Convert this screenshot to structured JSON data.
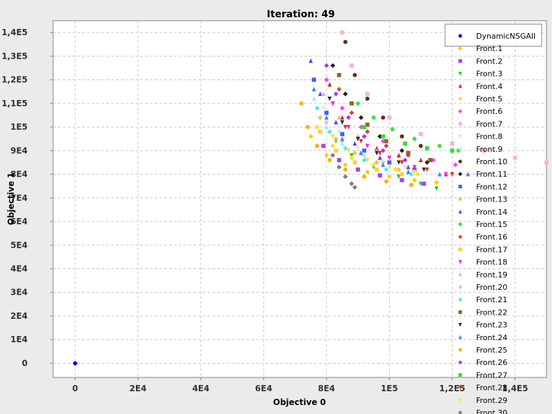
{
  "chart_data": {
    "type": "scatter",
    "title": "Iteration: 49",
    "xlabel": "Objective 0",
    "ylabel": "Objective 1",
    "xlim": [
      -7000,
      150000
    ],
    "ylim": [
      -6000,
      145000
    ],
    "x_ticks": [
      {
        "value": 0,
        "label": "0"
      },
      {
        "value": 20000,
        "label": "2E4"
      },
      {
        "value": 40000,
        "label": "4E4"
      },
      {
        "value": 60000,
        "label": "6E4"
      },
      {
        "value": 80000,
        "label": "8E4"
      },
      {
        "value": 100000,
        "label": "1E5"
      },
      {
        "value": 120000,
        "label": "1,2E5"
      },
      {
        "value": 140000,
        "label": "1,4E5"
      }
    ],
    "y_ticks": [
      {
        "value": 0,
        "label": "0"
      },
      {
        "value": 10000,
        "label": "1E4"
      },
      {
        "value": 20000,
        "label": "2E4"
      },
      {
        "value": 30000,
        "label": "3E4"
      },
      {
        "value": 40000,
        "label": "4E4"
      },
      {
        "value": 50000,
        "label": "5E4"
      },
      {
        "value": 60000,
        "label": "6E4"
      },
      {
        "value": 70000,
        "label": "7E4"
      },
      {
        "value": 80000,
        "label": "8E4"
      },
      {
        "value": 90000,
        "label": "9E4"
      },
      {
        "value": 100000,
        "label": "1E5"
      },
      {
        "value": 110000,
        "label": "1,1E5"
      },
      {
        "value": 120000,
        "label": "1,2E5"
      },
      {
        "value": 130000,
        "label": "1,3E5"
      },
      {
        "value": 140000,
        "label": "1,4E5"
      }
    ],
    "grid": true,
    "legend_position": "top-right",
    "series": [
      {
        "name": "DynamicNSGAII",
        "color": "#0000ff",
        "marker": "circle",
        "points": [
          [
            0,
            0
          ]
        ]
      },
      {
        "name": "Front.1",
        "color": "#ffc800",
        "marker": "diamond",
        "points": [
          [
            75000,
            96000
          ],
          [
            80000,
            88000
          ],
          [
            86000,
            84000
          ],
          [
            93000,
            81000
          ],
          [
            100000,
            79000
          ],
          [
            108000,
            77500
          ],
          [
            115000,
            76500
          ]
        ]
      },
      {
        "name": "Front.2",
        "color": "#a040ff",
        "marker": "square",
        "points": [
          [
            79000,
            92000
          ],
          [
            84000,
            86000
          ],
          [
            90000,
            82000
          ],
          [
            97000,
            79500
          ],
          [
            104000,
            77500
          ],
          [
            111000,
            76000
          ]
        ]
      },
      {
        "name": "Front.3",
        "color": "#20d020",
        "marker": "triangle-down",
        "points": [
          [
            83000,
            94000
          ],
          [
            88000,
            88000
          ],
          [
            95000,
            83000
          ],
          [
            103000,
            79000
          ],
          [
            110000,
            76000
          ],
          [
            115000,
            74000
          ]
        ]
      },
      {
        "name": "Front.4",
        "color": "#e02020",
        "marker": "triangle-up",
        "points": [
          [
            81000,
            118000
          ],
          [
            85000,
            104000
          ],
          [
            90000,
            96000
          ],
          [
            96000,
            91000
          ],
          [
            103000,
            88000
          ],
          [
            110000,
            86000
          ]
        ]
      },
      {
        "name": "Front.5",
        "color": "#ffe030",
        "marker": "circle",
        "points": [
          [
            77000,
            100000
          ],
          [
            82000,
            92000
          ],
          [
            88000,
            87000
          ],
          [
            95000,
            84000
          ],
          [
            102000,
            82000
          ],
          [
            109000,
            80000
          ]
        ]
      },
      {
        "name": "Front.6",
        "color": "#ff40ff",
        "marker": "diamond",
        "points": [
          [
            80000,
            120000
          ],
          [
            85000,
            108000
          ],
          [
            91000,
            100000
          ],
          [
            98000,
            94000
          ],
          [
            106000,
            89000
          ],
          [
            114000,
            86000
          ],
          [
            121000,
            84000
          ]
        ]
      },
      {
        "name": "Front.7",
        "color": "#ffb0d0",
        "marker": "square",
        "points": [
          [
            85000,
            140000
          ],
          [
            88000,
            126000
          ],
          [
            93000,
            114000
          ],
          [
            100000,
            104000
          ],
          [
            110000,
            97000
          ],
          [
            120000,
            93000
          ],
          [
            130000,
            90000
          ],
          [
            140000,
            87000
          ],
          [
            150000,
            85000
          ]
        ]
      },
      {
        "name": "Front.8",
        "color": "#e0e0e0",
        "marker": "triangle-down",
        "points": [
          [
            79000,
            108000
          ],
          [
            84000,
            98000
          ],
          [
            90000,
            91000
          ],
          [
            97000,
            86000
          ],
          [
            105000,
            83000
          ]
        ]
      },
      {
        "name": "Front.9",
        "color": "#a0f0f0",
        "marker": "triangle-up",
        "points": [
          [
            76000,
            112000
          ],
          [
            80000,
            100000
          ],
          [
            85000,
            93000
          ],
          [
            92000,
            88000
          ],
          [
            100000,
            85000
          ]
        ]
      },
      {
        "name": "Front.10",
        "color": "#603010",
        "marker": "circle",
        "points": [
          [
            86000,
            136000
          ],
          [
            89000,
            122000
          ],
          [
            93000,
            112000
          ],
          [
            98000,
            104000
          ],
          [
            104000,
            96000
          ],
          [
            110000,
            92000
          ]
        ]
      },
      {
        "name": "Front.11",
        "color": "#202020",
        "marker": "diamond",
        "points": [
          [
            82000,
            126000
          ],
          [
            86000,
            114000
          ],
          [
            91000,
            104000
          ],
          [
            97000,
            96000
          ],
          [
            104000,
            90000
          ],
          [
            112000,
            85000
          ]
        ]
      },
      {
        "name": "Front.12",
        "color": "#4060ff",
        "marker": "square",
        "points": [
          [
            76000,
            120000
          ],
          [
            80000,
            106000
          ],
          [
            85000,
            97000
          ],
          [
            92000,
            90000
          ],
          [
            100000,
            85000
          ],
          [
            108000,
            82000
          ]
        ]
      },
      {
        "name": "Front.13",
        "color": "#f0c060",
        "marker": "diamond",
        "points": [
          [
            78000,
            104000
          ],
          [
            83000,
            95000
          ],
          [
            89000,
            89000
          ],
          [
            96000,
            85000
          ],
          [
            103000,
            82000
          ]
        ]
      },
      {
        "name": "Front.14",
        "color": "#6040e0",
        "marker": "triangle-up",
        "points": [
          [
            75000,
            128000
          ],
          [
            78000,
            114000
          ],
          [
            83000,
            102000
          ],
          [
            89000,
            93000
          ],
          [
            97000,
            87000
          ],
          [
            106000,
            83000
          ],
          [
            118000,
            80000
          ]
        ]
      },
      {
        "name": "Front.15",
        "color": "#40e040",
        "marker": "circle",
        "points": [
          [
            90000,
            110000
          ],
          [
            95000,
            104000
          ],
          [
            101000,
            99000
          ],
          [
            108000,
            95000
          ],
          [
            116000,
            92000
          ],
          [
            122000,
            90000
          ]
        ]
      },
      {
        "name": "Front.16",
        "color": "#e04040",
        "marker": "diamond",
        "points": [
          [
            84000,
            116000
          ],
          [
            88000,
            106000
          ],
          [
            93000,
            98000
          ],
          [
            99000,
            92000
          ],
          [
            106000,
            88000
          ]
        ]
      },
      {
        "name": "Front.17",
        "color": "#ffd040",
        "marker": "square",
        "points": [
          [
            78000,
            98000
          ],
          [
            83000,
            90000
          ],
          [
            89000,
            85000
          ],
          [
            96000,
            82000
          ],
          [
            104000,
            80000
          ]
        ]
      },
      {
        "name": "Front.18",
        "color": "#ff20e0",
        "marker": "triangle-down",
        "points": [
          [
            82000,
            110000
          ],
          [
            87000,
            100000
          ],
          [
            93000,
            92000
          ],
          [
            100000,
            87000
          ],
          [
            108000,
            83000
          ],
          [
            118000,
            80000
          ]
        ]
      },
      {
        "name": "Front.19",
        "color": "#ffa0c0",
        "marker": "triangle-up",
        "points": [
          [
            79000,
            114000
          ],
          [
            84000,
            104000
          ],
          [
            90000,
            96000
          ],
          [
            96000,
            90000
          ]
        ]
      },
      {
        "name": "Front.20",
        "color": "#d0d0d0",
        "marker": "circle",
        "points": [
          [
            80000,
            102000
          ],
          [
            85000,
            94000
          ],
          [
            91000,
            89000
          ],
          [
            98000,
            85000
          ]
        ]
      },
      {
        "name": "Front.21",
        "color": "#40f0f0",
        "marker": "diamond",
        "points": [
          [
            77000,
            108000
          ],
          [
            81000,
            98000
          ],
          [
            86000,
            91000
          ],
          [
            92000,
            86000
          ],
          [
            99000,
            82000
          ],
          [
            107000,
            80000
          ]
        ]
      },
      {
        "name": "Front.22",
        "color": "#906030",
        "marker": "square",
        "points": [
          [
            84000,
            122000
          ],
          [
            88000,
            110000
          ],
          [
            93000,
            101000
          ],
          [
            99000,
            94000
          ],
          [
            106000,
            89000
          ],
          [
            113000,
            86000
          ]
        ]
      },
      {
        "name": "Front.23",
        "color": "#303030",
        "marker": "triangle-down",
        "points": [
          [
            81000,
            112000
          ],
          [
            85000,
            102000
          ],
          [
            90000,
            95000
          ],
          [
            96000,
            89000
          ],
          [
            103000,
            85000
          ],
          [
            111000,
            82000
          ]
        ]
      },
      {
        "name": "Front.24",
        "color": "#4080ff",
        "marker": "triangle-up",
        "points": [
          [
            76000,
            116000
          ],
          [
            80000,
            104000
          ],
          [
            85000,
            95000
          ],
          [
            91000,
            89000
          ],
          [
            98000,
            84000
          ],
          [
            106000,
            81000
          ],
          [
            116000,
            80000
          ],
          [
            125000,
            80000
          ]
        ]
      },
      {
        "name": "Front.25",
        "color": "#ffb000",
        "marker": "circle",
        "points": [
          [
            72000,
            110000
          ],
          [
            74000,
            100000
          ],
          [
            77000,
            92000
          ],
          [
            81000,
            86000
          ],
          [
            86000,
            82000
          ],
          [
            92000,
            79000
          ],
          [
            99000,
            77000
          ],
          [
            107000,
            75500
          ]
        ]
      },
      {
        "name": "Front.26",
        "color": "#a040e0",
        "marker": "diamond",
        "points": [
          [
            80000,
            126000
          ],
          [
            83000,
            114000
          ],
          [
            87000,
            104000
          ],
          [
            92000,
            96000
          ],
          [
            98000,
            90000
          ],
          [
            105000,
            86000
          ]
        ]
      },
      {
        "name": "Front.27",
        "color": "#30e030",
        "marker": "square",
        "points": [
          [
            92000,
            100000
          ],
          [
            98000,
            96000
          ],
          [
            105000,
            93000
          ],
          [
            112000,
            91000
          ],
          [
            120000,
            90000
          ]
        ]
      },
      {
        "name": "Front.28",
        "color": "#e03020",
        "marker": "triangle-down",
        "points": [
          [
            86000,
            100000
          ],
          [
            91000,
            94000
          ],
          [
            97000,
            89000
          ],
          [
            104000,
            85000
          ],
          [
            112000,
            82000
          ],
          [
            120000,
            80000
          ]
        ]
      },
      {
        "name": "Front.29",
        "color": "#ffe020",
        "marker": "triangle-down",
        "points": [
          [
            82000,
            96000
          ],
          [
            87000,
            90000
          ],
          [
            93000,
            86000
          ],
          [
            100000,
            83000
          ],
          [
            108000,
            81000
          ]
        ]
      },
      {
        "name": "Front.30",
        "color": "#7d7d7d",
        "marker": "diamond",
        "points": [
          [
            82000,
            88000
          ],
          [
            84000,
            83000
          ],
          [
            86000,
            79000
          ],
          [
            88000,
            76000
          ],
          [
            89000,
            74500
          ]
        ]
      }
    ]
  }
}
